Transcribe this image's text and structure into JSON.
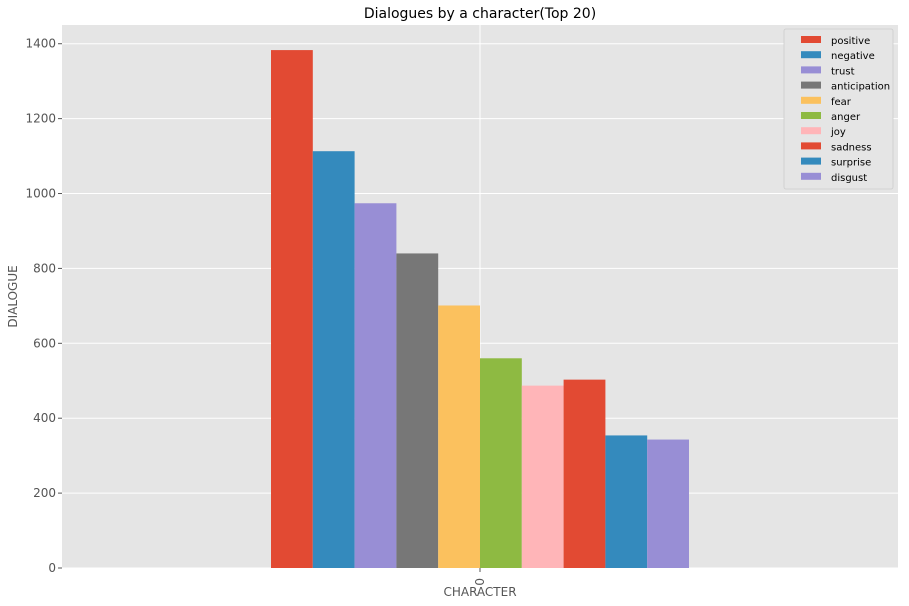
{
  "chart_data": {
    "type": "bar",
    "title": "Dialogues by a character(Top 20)",
    "xlabel": "CHARACTER",
    "ylabel": "DIALOGUE",
    "categories": [
      "0"
    ],
    "ylim": [
      0,
      1450
    ],
    "yticks": [
      0,
      200,
      400,
      600,
      800,
      1000,
      1200,
      1400
    ],
    "grid": true,
    "legend_position": "top-right",
    "background_color": "#e5e5e5",
    "series": [
      {
        "name": "positive",
        "values": [
          1383
        ],
        "color": "#e24a33"
      },
      {
        "name": "negative",
        "values": [
          1113
        ],
        "color": "#348abd"
      },
      {
        "name": "trust",
        "values": [
          974
        ],
        "color": "#988ed5"
      },
      {
        "name": "anticipation",
        "values": [
          840
        ],
        "color": "#777777"
      },
      {
        "name": "fear",
        "values": [
          701
        ],
        "color": "#fbc15e"
      },
      {
        "name": "anger",
        "values": [
          560
        ],
        "color": "#8eba42"
      },
      {
        "name": "joy",
        "values": [
          487
        ],
        "color": "#ffb5b8"
      },
      {
        "name": "sadness",
        "values": [
          503
        ],
        "color": "#e24a33"
      },
      {
        "name": "surprise",
        "values": [
          354
        ],
        "color": "#348abd"
      },
      {
        "name": "disgust",
        "values": [
          343
        ],
        "color": "#988ed5"
      }
    ]
  }
}
